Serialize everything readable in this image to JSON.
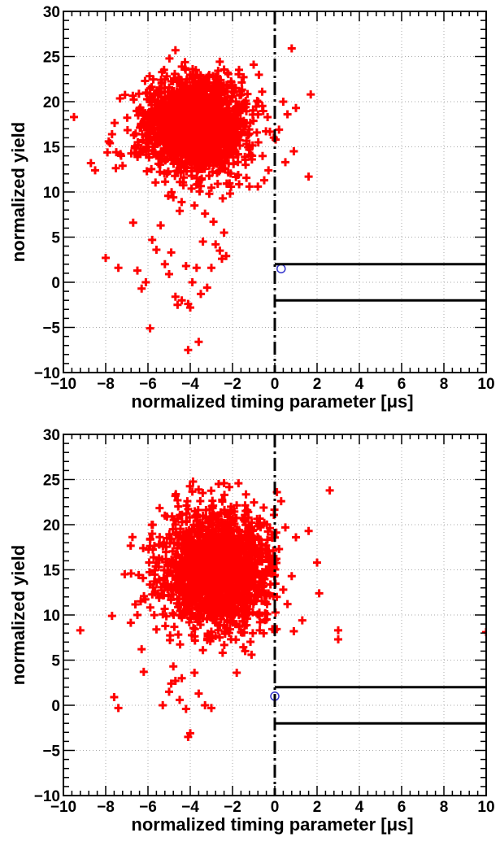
{
  "chart_data": [
    {
      "type": "scatter",
      "xlabel": "normalized timing parameter [μs]",
      "ylabel": "normalized yield",
      "xlim": [
        -10,
        10
      ],
      "ylim": [
        -10,
        30
      ],
      "x_ticks": [
        "−10",
        "−8",
        "−6",
        "−4",
        "−2",
        "0",
        "2",
        "4",
        "6",
        "8",
        "10"
      ],
      "y_ticks": [
        "−10",
        "−5",
        "0",
        "5",
        "10",
        "15",
        "20",
        "25",
        "30"
      ],
      "grid": true,
      "colors": {
        "points": "#ff0000",
        "lines": "#000000",
        "highlight": "#3333cc"
      },
      "cut_lines": {
        "vertical_dashed_x": 0,
        "horizontal_y": [
          2,
          -2
        ],
        "x_range": [
          0,
          10
        ]
      },
      "highlight_point": {
        "x": 0.3,
        "y": 1.5
      },
      "cluster": {
        "center": [
          -3.8,
          17.5
        ],
        "spread": [
          1.2,
          2.6
        ],
        "count": 1800
      },
      "points": [
        [
          -9.5,
          18.3
        ],
        [
          -8.7,
          13.2
        ],
        [
          -8.5,
          12.4
        ],
        [
          -7.8,
          15.4
        ],
        [
          -7.7,
          16.4
        ],
        [
          -7.5,
          14.4
        ],
        [
          -7.3,
          14.2
        ],
        [
          -7.2,
          12.9
        ],
        [
          -8.0,
          2.7
        ],
        [
          -7.4,
          1.6
        ],
        [
          -6.7,
          6.6
        ],
        [
          -6.5,
          1.3
        ],
        [
          -6.1,
          0.0
        ],
        [
          -6.3,
          -0.7
        ],
        [
          -5.9,
          -5.1
        ],
        [
          -5.8,
          4.7
        ],
        [
          -5.6,
          3.6
        ],
        [
          -5.4,
          6.3
        ],
        [
          -5.2,
          2.0
        ],
        [
          -5.0,
          0.9
        ],
        [
          -4.9,
          3.3
        ],
        [
          -4.7,
          -1.6
        ],
        [
          -4.6,
          -2.5
        ],
        [
          -4.4,
          -2.0
        ],
        [
          -4.2,
          1.8
        ],
        [
          -4.1,
          -2.4
        ],
        [
          -4.0,
          -2.8
        ],
        [
          -3.9,
          0.0
        ],
        [
          -3.7,
          1.6
        ],
        [
          -3.5,
          -1.3
        ],
        [
          -3.4,
          4.5
        ],
        [
          -3.2,
          -0.6
        ],
        [
          -3.6,
          -6.6
        ],
        [
          -4.1,
          -7.5
        ],
        [
          -3.0,
          1.6
        ],
        [
          -2.8,
          4.2
        ],
        [
          -2.6,
          3.5
        ],
        [
          -2.5,
          2.6
        ],
        [
          -2.3,
          2.9
        ],
        [
          -2.4,
          5.5
        ],
        [
          -2.9,
          6.7
        ],
        [
          -3.3,
          7.6
        ],
        [
          -3.8,
          8.5
        ],
        [
          -4.5,
          7.9
        ],
        [
          -4.8,
          9.4
        ],
        [
          -3.1,
          9.8
        ],
        [
          -2.7,
          10.9
        ],
        [
          -1.0,
          24.1
        ],
        [
          -0.5,
          11.3
        ],
        [
          -1.2,
          10.6
        ],
        [
          -0.8,
          10.6
        ],
        [
          0.2,
          16.9
        ],
        [
          0.4,
          20.0
        ],
        [
          0.5,
          13.3
        ],
        [
          0.8,
          25.9
        ],
        [
          0.6,
          18.6
        ],
        [
          0.9,
          14.5
        ],
        [
          1.0,
          19.3
        ],
        [
          1.7,
          20.8
        ],
        [
          1.6,
          11.7
        ],
        [
          -0.3,
          12.4
        ],
        [
          -4.7,
          25.7
        ]
      ]
    },
    {
      "type": "scatter",
      "xlabel": "normalized timing parameter [μs]",
      "ylabel": "normalized yield",
      "xlim": [
        -10,
        10
      ],
      "ylim": [
        -10,
        30
      ],
      "x_ticks": [
        "−10",
        "−8",
        "−6",
        "−4",
        "−2",
        "0",
        "2",
        "4",
        "6",
        "8",
        "10"
      ],
      "y_ticks": [
        "−10",
        "−5",
        "0",
        "5",
        "10",
        "15",
        "20",
        "25",
        "30"
      ],
      "grid": true,
      "colors": {
        "points": "#ff0000",
        "lines": "#000000",
        "highlight": "#3333cc"
      },
      "cut_lines": {
        "vertical_dashed_x": 0,
        "horizontal_y": [
          2,
          -2
        ],
        "x_range": [
          0,
          10
        ]
      },
      "highlight_point": {
        "x": 0.0,
        "y": 1.0
      },
      "cluster": {
        "center": [
          -2.8,
          15.0
        ],
        "spread": [
          1.3,
          3.2
        ],
        "count": 1800
      },
      "points": [
        [
          -9.2,
          8.3
        ],
        [
          -7.7,
          9.9
        ],
        [
          -7.6,
          0.9
        ],
        [
          -7.4,
          -0.3
        ],
        [
          -7.1,
          14.5
        ],
        [
          -6.8,
          14.6
        ],
        [
          -6.5,
          10.0
        ],
        [
          -6.3,
          6.2
        ],
        [
          -6.2,
          3.7
        ],
        [
          -5.8,
          19.0
        ],
        [
          -5.7,
          13.7
        ],
        [
          -5.6,
          8.4
        ],
        [
          -5.3,
          0.0
        ],
        [
          -5.0,
          1.5
        ],
        [
          -4.8,
          4.3
        ],
        [
          -4.7,
          2.7
        ],
        [
          -4.5,
          0.6
        ],
        [
          -4.4,
          3.0
        ],
        [
          -4.9,
          2.4
        ],
        [
          -4.2,
          -0.4
        ],
        [
          -4.0,
          -3.1
        ],
        [
          -4.1,
          -3.5
        ],
        [
          -3.8,
          3.6
        ],
        [
          -3.6,
          1.3
        ],
        [
          -3.4,
          6.1
        ],
        [
          -3.3,
          0.0
        ],
        [
          -3.0,
          -0.3
        ],
        [
          -2.4,
          24.6
        ],
        [
          -1.8,
          3.6
        ],
        [
          -1.6,
          8.1
        ],
        [
          -1.4,
          6.0
        ],
        [
          -1.1,
          5.6
        ],
        [
          -0.8,
          12.0
        ],
        [
          -0.5,
          20.2
        ],
        [
          0.1,
          23.6
        ],
        [
          0.2,
          17.3
        ],
        [
          0.3,
          22.6
        ],
        [
          0.4,
          12.8
        ],
        [
          0.5,
          19.7
        ],
        [
          0.8,
          14.3
        ],
        [
          1.0,
          18.6
        ],
        [
          1.3,
          9.4
        ],
        [
          1.6,
          19.3
        ],
        [
          2.0,
          15.8
        ],
        [
          2.1,
          12.4
        ],
        [
          2.6,
          23.8
        ],
        [
          3.0,
          8.3
        ],
        [
          3.0,
          7.3
        ],
        [
          10.0,
          8.1
        ],
        [
          -5.2,
          21.0
        ],
        [
          -4.6,
          22.7
        ],
        [
          -1.3,
          21.6
        ],
        [
          -0.3,
          12.4
        ],
        [
          -0.7,
          9.2
        ],
        [
          0.6,
          11.2
        ],
        [
          0.9,
          8.2
        ]
      ]
    }
  ]
}
